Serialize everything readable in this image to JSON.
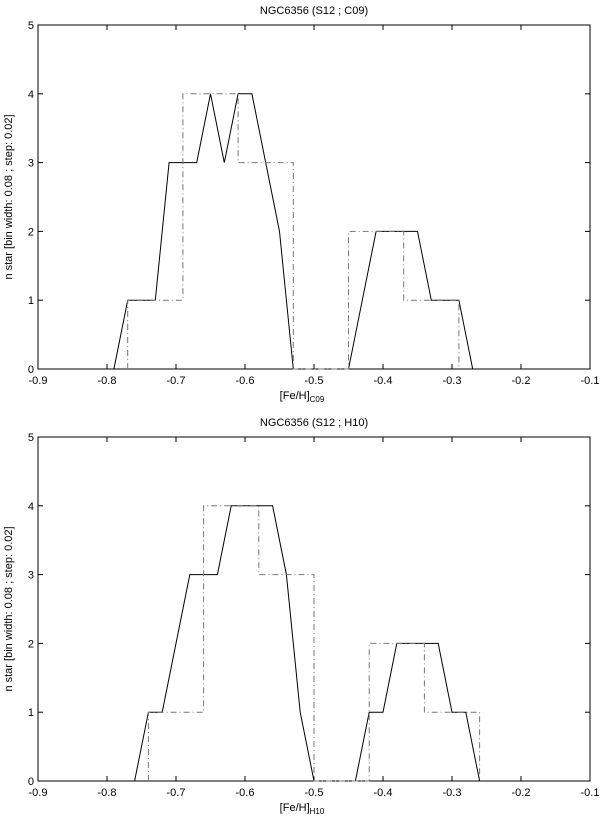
{
  "chart_data": [
    {
      "type": "line",
      "title": "NGC6356 (S12 ; C09)",
      "xlabel": "[Fe/H]",
      "xlabel_sub": "C09",
      "ylabel": "n star [bin width: 0.08 ; step: 0.02]",
      "xlim": [
        -0.9,
        -0.1
      ],
      "ylim": [
        0,
        5
      ],
      "xticks": [
        -0.9,
        -0.8,
        -0.7,
        -0.6,
        -0.5,
        -0.4,
        -0.3,
        -0.2,
        -0.1
      ],
      "xtick_labels": [
        "-0.9",
        "-0.8",
        "-0.7",
        "-0.6",
        "-0.5",
        "-0.4",
        "-0.3",
        "-0.2",
        "-0.1"
      ],
      "yticks": [
        0,
        1,
        2,
        3,
        4,
        5
      ],
      "ytick_labels": [
        "0",
        "1",
        "2",
        "3",
        "4",
        "5"
      ],
      "grid": false,
      "series": [
        {
          "style": "solid",
          "color": "#000000",
          "x": [
            -0.79,
            -0.77,
            -0.73,
            -0.71,
            -0.69,
            -0.67,
            -0.65,
            -0.63,
            -0.61,
            -0.59,
            -0.57,
            -0.55,
            -0.53,
            -0.51,
            -0.45,
            -0.43,
            -0.41,
            -0.39,
            -0.37,
            -0.35,
            -0.33,
            -0.31,
            -0.29,
            -0.27
          ],
          "y": [
            0,
            1,
            1,
            3,
            3,
            3,
            4,
            3,
            4,
            4,
            3,
            2,
            0,
            0,
            0,
            1,
            2,
            2,
            2,
            2,
            1,
            1,
            1,
            0
          ]
        },
        {
          "style": "dashdot",
          "color": "#777777",
          "x": [
            -0.77,
            -0.77,
            -0.69,
            -0.69,
            -0.61,
            -0.61,
            -0.53,
            -0.53,
            -0.45,
            -0.45,
            -0.37,
            -0.37,
            -0.29,
            -0.29
          ],
          "y": [
            0,
            1,
            1,
            4,
            4,
            3,
            3,
            0,
            0,
            2,
            2,
            1,
            1,
            0
          ]
        }
      ]
    },
    {
      "type": "line",
      "title": "NGC6356 (S12 ; H10)",
      "xlabel": "[Fe/H]",
      "xlabel_sub": "H10",
      "ylabel": "n star [bin width: 0.08 ; step: 0.02]",
      "xlim": [
        -0.9,
        -0.1
      ],
      "ylim": [
        0,
        5
      ],
      "xticks": [
        -0.9,
        -0.8,
        -0.7,
        -0.6,
        -0.5,
        -0.4,
        -0.3,
        -0.2,
        -0.1
      ],
      "xtick_labels": [
        "-0.9",
        "-0.8",
        "-0.7",
        "-0.6",
        "-0.5",
        "-0.4",
        "-0.3",
        "-0.2",
        "-0.1"
      ],
      "yticks": [
        0,
        1,
        2,
        3,
        4,
        5
      ],
      "ytick_labels": [
        "0",
        "1",
        "2",
        "3",
        "4",
        "5"
      ],
      "grid": false,
      "series": [
        {
          "style": "solid",
          "color": "#000000",
          "x": [
            -0.76,
            -0.74,
            -0.72,
            -0.7,
            -0.68,
            -0.66,
            -0.64,
            -0.62,
            -0.6,
            -0.58,
            -0.56,
            -0.54,
            -0.52,
            -0.5,
            -0.44,
            -0.42,
            -0.4,
            -0.38,
            -0.36,
            -0.34,
            -0.32,
            -0.3,
            -0.28,
            -0.26
          ],
          "y": [
            0,
            1,
            1,
            2,
            3,
            3,
            3,
            4,
            4,
            4,
            4,
            3,
            1,
            0,
            0,
            1,
            1,
            2,
            2,
            2,
            2,
            1,
            1,
            0
          ]
        },
        {
          "style": "dashdot",
          "color": "#777777",
          "x": [
            -0.74,
            -0.74,
            -0.66,
            -0.66,
            -0.58,
            -0.58,
            -0.5,
            -0.5,
            -0.42,
            -0.42,
            -0.34,
            -0.34,
            -0.26,
            -0.26
          ],
          "y": [
            0,
            1,
            1,
            4,
            4,
            3,
            3,
            0,
            0,
            2,
            2,
            1,
            1,
            0
          ]
        }
      ]
    }
  ]
}
